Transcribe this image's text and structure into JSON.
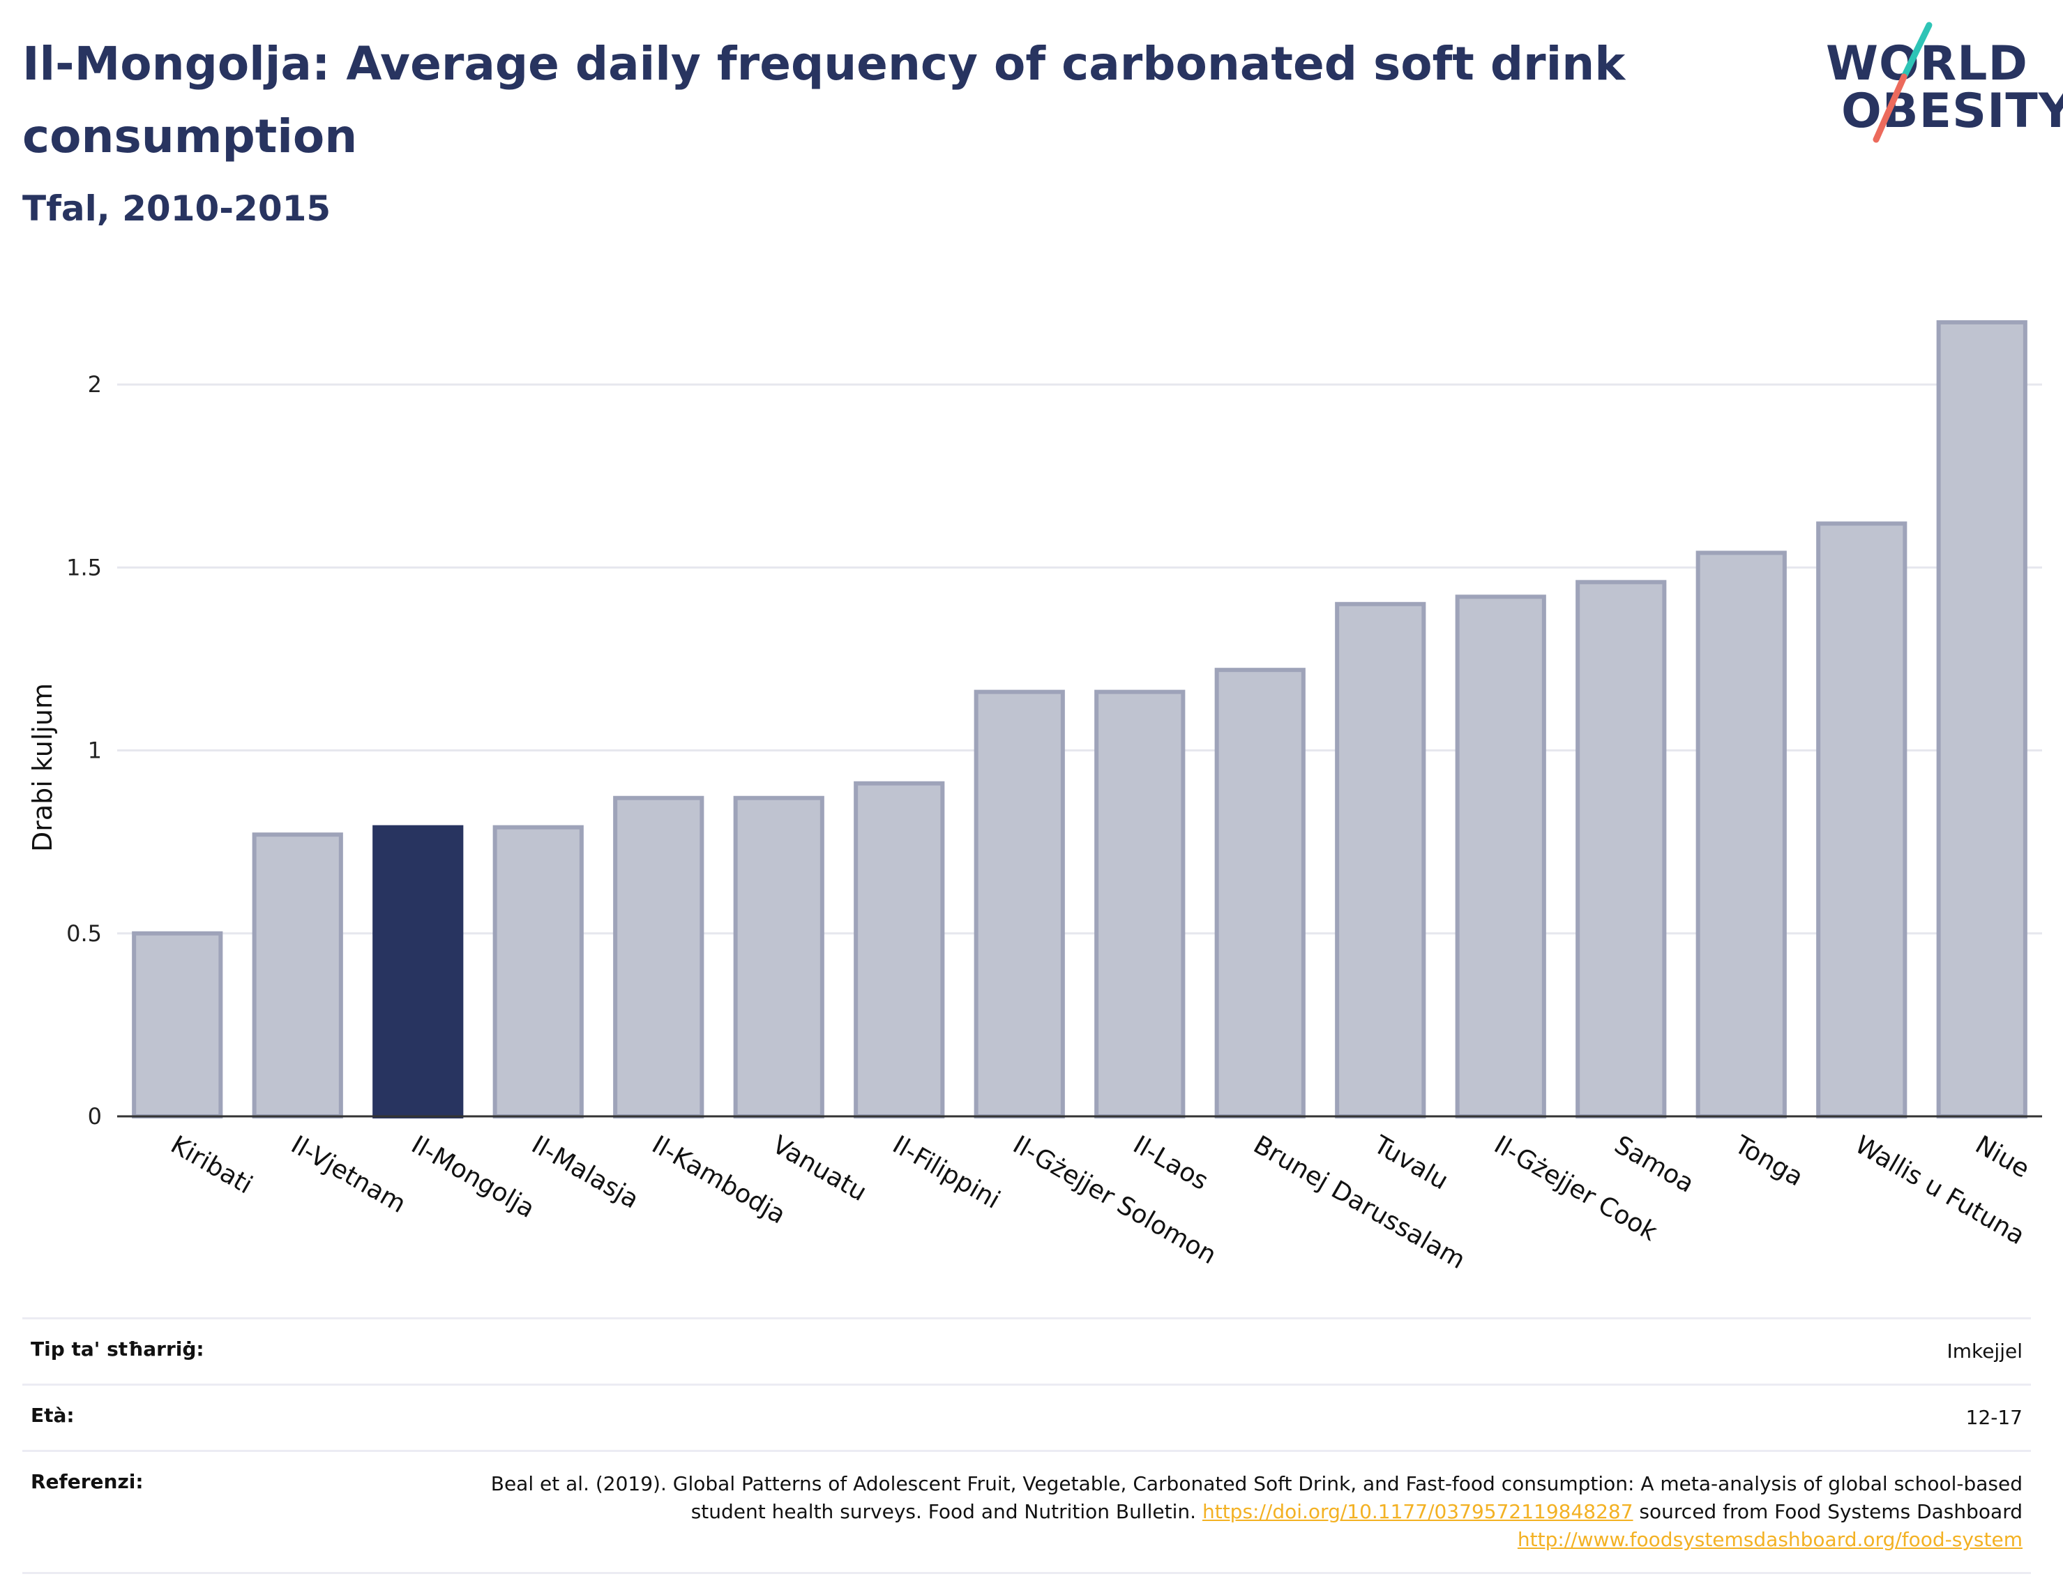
{
  "title": "Il-Mongolja: Average daily frequency of carbonated soft drink consumption",
  "subtitle": "Tfal, 2010-2015",
  "logo": {
    "line1": "WORLD",
    "line2": "OBESITY"
  },
  "colors": {
    "highlight": "#283460",
    "bar_fill": "#bfc3d0",
    "bar_stroke": "#9ea3b9",
    "accent_teal": "#2ec4b6",
    "accent_red": "#ec6a5c"
  },
  "chart_data": {
    "type": "bar",
    "ylabel": "Drabi kuljum",
    "xlabel": "",
    "ylim": [
      0,
      2.25
    ],
    "yticks": [
      0,
      0.5,
      1,
      1.5,
      2
    ],
    "ytick_labels": [
      "0",
      "0.5",
      "1",
      "1.5",
      "2"
    ],
    "grid": true,
    "highlight": "Il-Mongolja",
    "categories": [
      "Kiribati",
      "Il-Vjetnam",
      "Il-Mongolja",
      "Il-Malasja",
      "Il-Kambodja",
      "Vanuatu",
      "Il-Filippini",
      "Il-Gżejjer Solomon",
      "Il-Laos",
      "Brunej Darussalam",
      "Tuvalu",
      "Il-Gżejjer Cook",
      "Samoa",
      "Tonga",
      "Wallis u Futuna",
      "Niue"
    ],
    "values": [
      0.5,
      0.77,
      0.79,
      0.79,
      0.87,
      0.87,
      0.91,
      1.16,
      1.16,
      1.22,
      1.4,
      1.42,
      1.46,
      1.54,
      1.62,
      2.17
    ]
  },
  "meta": {
    "type_label": "Tip ta' stħarriġ:",
    "type_value": "Imkejjel",
    "age_label": "Età:",
    "age_value": "12-17",
    "ref_label": "Referenzi:",
    "ref_text1": "Beal et al. (2019). Global Patterns of Adolescent Fruit, Vegetable, Carbonated Soft Drink, and Fast-food consumption: A meta-analysis of global school-based student health surveys. Food and Nutrition Bulletin. ",
    "ref_link1": "https://doi.org/10.1177/0379572119848287",
    "ref_text2": " sourced from Food Systems Dashboard ",
    "ref_link2": "http://www.foodsystemsdashboard.org/food-system"
  }
}
